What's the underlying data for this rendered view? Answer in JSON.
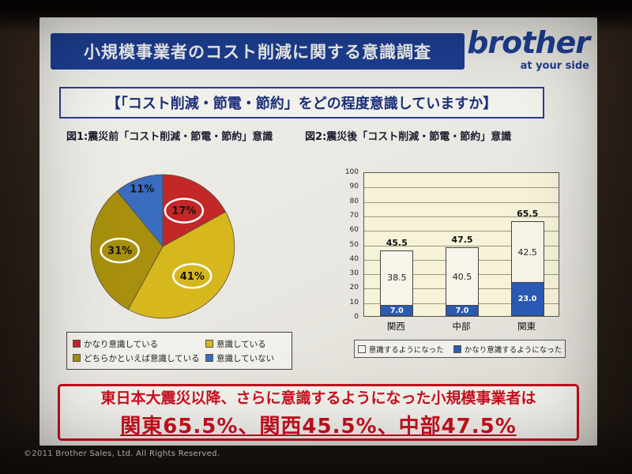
{
  "photo": {
    "copyright": "©2011 Brother Sales, Ltd. All Rights Reserved."
  },
  "header": {
    "title": "小規模事業者のコスト削減に関する意識調査",
    "logo_text": "brother",
    "logo_tagline": "at your side",
    "brand_color": "#1d3f93"
  },
  "question": {
    "text": "【「コスト削減・節電・節約」をどの程度意識していますか】"
  },
  "conclusion": {
    "line1": "東日本大震災以降、さらに意識するようになった小規模事業者は",
    "line2": "関東65.5%、関西45.5%、中部47.5%",
    "accent_color": "#c6101e"
  },
  "chart_data": [
    {
      "type": "pie",
      "title": "図1:震災前「コスト削減・節電・節約」意識",
      "labels": [
        "かなり意識している",
        "意識している",
        "どちらかといえば意識している",
        "意識していない"
      ],
      "values": [
        17,
        41,
        31,
        11
      ],
      "data_labels": [
        "17%",
        "41%",
        "31%",
        "11%"
      ],
      "colors": [
        "#c32727",
        "#d6b71e",
        "#a8900e",
        "#3a6cc0"
      ],
      "label_radius": [
        0.58,
        0.58,
        0.6,
        0.85
      ],
      "label_ellipse": [
        true,
        true,
        true,
        false
      ],
      "legend_position": "bottom"
    },
    {
      "type": "bar",
      "stacked": true,
      "title": "図2:震災後「コスト削減・節電・節約」意識",
      "categories": [
        "関西",
        "中部",
        "関東"
      ],
      "series": [
        {
          "name": "意識するようになった",
          "values": [
            38.5,
            40.5,
            42.5
          ],
          "color": "#f7f5ea",
          "stack_order": "top"
        },
        {
          "name": "かなり意識するようになった",
          "values": [
            7.0,
            7.0,
            23.0
          ],
          "color": "#2b5ab5",
          "stack_order": "bottom"
        }
      ],
      "totals": [
        45.5,
        47.5,
        65.5
      ],
      "ylim": [
        0,
        100
      ],
      "ytick_step": 10,
      "grid": true,
      "legend_position": "bottom"
    }
  ]
}
